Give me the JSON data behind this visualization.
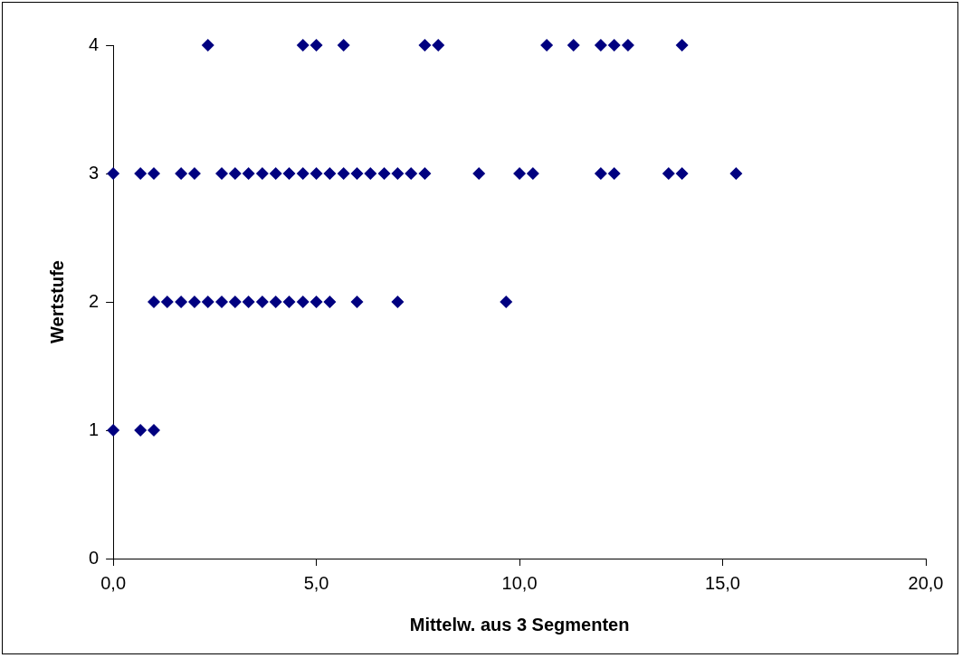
{
  "chart_data": {
    "type": "scatter",
    "xlabel": "Mittelw. aus 3 Segmenten",
    "ylabel": "Wertstufe",
    "xlim": [
      0,
      20
    ],
    "xticks": [
      {
        "value": 0,
        "label": "0,0"
      },
      {
        "value": 5,
        "label": "5,0"
      },
      {
        "value": 10,
        "label": "10,0"
      },
      {
        "value": 15,
        "label": "15,0"
      },
      {
        "value": 20,
        "label": "20,0"
      }
    ],
    "ylim": [
      0,
      4
    ],
    "yticks": [
      0,
      1,
      2,
      3,
      4
    ],
    "grid": false,
    "legend": false,
    "marker": "diamond",
    "series": [
      {
        "color": "#000080",
        "x": [
          2.33,
          4.67,
          5,
          5.67,
          7.67,
          8,
          10.67,
          11.33,
          12,
          12.33,
          12.67,
          14,
          0,
          0.67,
          1,
          1.67,
          2,
          2.67,
          3,
          3.33,
          3.67,
          4,
          4.33,
          4.67,
          5,
          5.33,
          5.67,
          6,
          6.33,
          6.67,
          7,
          7.33,
          7.67,
          9,
          10,
          10.33,
          12,
          12.33,
          13.67,
          14,
          15.33,
          1,
          1.33,
          1.67,
          2,
          2.33,
          2.67,
          3,
          3.33,
          3.67,
          4,
          4.33,
          4.67,
          5,
          5.33,
          6,
          7,
          9.67,
          0,
          0.67,
          1
        ],
        "values": [
          4,
          4,
          4,
          4,
          4,
          4,
          4,
          4,
          4,
          4,
          4,
          4,
          3,
          3,
          3,
          3,
          3,
          3,
          3,
          3,
          3,
          3,
          3,
          3,
          3,
          3,
          3,
          3,
          3,
          3,
          3,
          3,
          3,
          3,
          3,
          3,
          3,
          3,
          3,
          3,
          3,
          2,
          2,
          2,
          2,
          2,
          2,
          2,
          2,
          2,
          2,
          2,
          2,
          2,
          2,
          2,
          2,
          2,
          1,
          1,
          1
        ]
      }
    ]
  }
}
